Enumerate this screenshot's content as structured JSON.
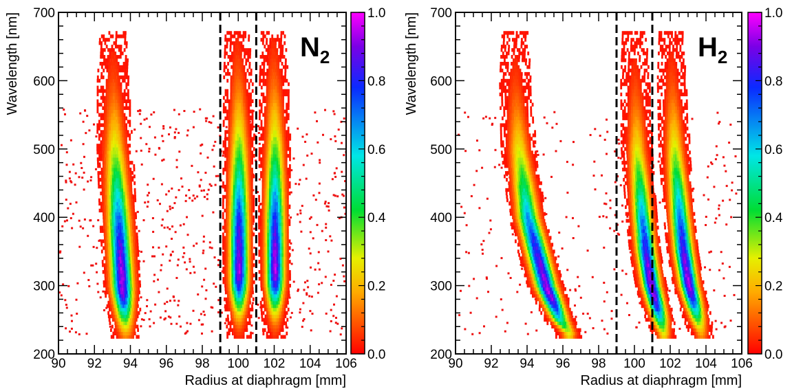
{
  "chart_data": [
    {
      "type": "heatmap",
      "gas_label": {
        "base": "N",
        "sub": "2"
      },
      "xlabel": "Radius at diaphragm [mm]",
      "ylabel": "Wavelength [nm]",
      "xlim": [
        90,
        106
      ],
      "ylim": [
        200,
        700
      ],
      "xticks": [
        90,
        92,
        94,
        96,
        98,
        100,
        102,
        104,
        106
      ],
      "yticks": [
        200,
        300,
        400,
        500,
        600,
        700
      ],
      "colorbar": {
        "range": [
          0.0,
          1.0
        ],
        "ticks": [
          "0.0",
          "0.2",
          "0.4",
          "0.6",
          "0.8",
          "1.0"
        ]
      },
      "dashed_lines_x": [
        99.0,
        101.0
      ],
      "bands": [
        {
          "wavelength": [
            230,
            300,
            400,
            500,
            600,
            670
          ],
          "center_radius": [
            93.7,
            93.5,
            93.3,
            93.1,
            93.0,
            93.0
          ],
          "width_mm": [
            0.55,
            0.7,
            0.72,
            0.68,
            0.6,
            0.5
          ],
          "peak_wavelength": 300
        },
        {
          "wavelength": [
            230,
            300,
            400,
            500,
            600,
            670
          ],
          "center_radius": [
            100.0,
            100.0,
            100.0,
            100.0,
            99.95,
            99.9
          ],
          "width_mm": [
            0.45,
            0.6,
            0.62,
            0.6,
            0.55,
            0.45
          ],
          "peak_wavelength": 320
        },
        {
          "wavelength": [
            230,
            300,
            400,
            500,
            600,
            670
          ],
          "center_radius": [
            102.0,
            102.0,
            102.0,
            102.0,
            101.95,
            101.9
          ],
          "width_mm": [
            0.45,
            0.6,
            0.62,
            0.6,
            0.55,
            0.45
          ],
          "peak_wavelength": 320
        }
      ],
      "noise_points": 700
    },
    {
      "type": "heatmap",
      "gas_label": {
        "base": "H",
        "sub": "2"
      },
      "xlabel": "Radius at diaphragm [mm]",
      "ylabel": "Wavelength [nm]",
      "xlim": [
        90,
        106
      ],
      "ylim": [
        200,
        700
      ],
      "xticks": [
        90,
        92,
        94,
        96,
        98,
        100,
        102,
        104,
        106
      ],
      "yticks": [
        200,
        300,
        400,
        500,
        600,
        700
      ],
      "colorbar": {
        "range": [
          0.0,
          1.0
        ],
        "ticks": [
          "0.0",
          "0.2",
          "0.4",
          "0.6",
          "0.8",
          "1.0"
        ]
      },
      "dashed_lines_x": [
        99.0,
        101.0
      ],
      "bands": [
        {
          "wavelength": [
            230,
            250,
            300,
            350,
            400,
            500,
            600,
            670
          ],
          "center_radius": [
            96.3,
            95.8,
            95.0,
            94.5,
            94.0,
            93.5,
            93.3,
            93.3
          ],
          "width_mm": [
            0.5,
            0.6,
            0.7,
            0.72,
            0.72,
            0.68,
            0.6,
            0.5
          ],
          "peak_wavelength": 290
        },
        {
          "wavelength": [
            230,
            250,
            300,
            350,
            400,
            500,
            600,
            670
          ],
          "center_radius": [
            101.6,
            101.4,
            100.9,
            100.6,
            100.4,
            100.1,
            100.0,
            99.95
          ],
          "width_mm": [
            0.45,
            0.55,
            0.6,
            0.62,
            0.62,
            0.6,
            0.55,
            0.45
          ],
          "peak_wavelength": 290
        },
        {
          "wavelength": [
            230,
            250,
            300,
            350,
            400,
            500,
            600,
            670
          ],
          "center_radius": [
            103.7,
            103.5,
            103.0,
            102.7,
            102.5,
            102.2,
            102.05,
            102.0
          ],
          "width_mm": [
            0.45,
            0.55,
            0.6,
            0.62,
            0.62,
            0.6,
            0.55,
            0.45
          ],
          "peak_wavelength": 300
        }
      ],
      "noise_points": 320
    }
  ]
}
